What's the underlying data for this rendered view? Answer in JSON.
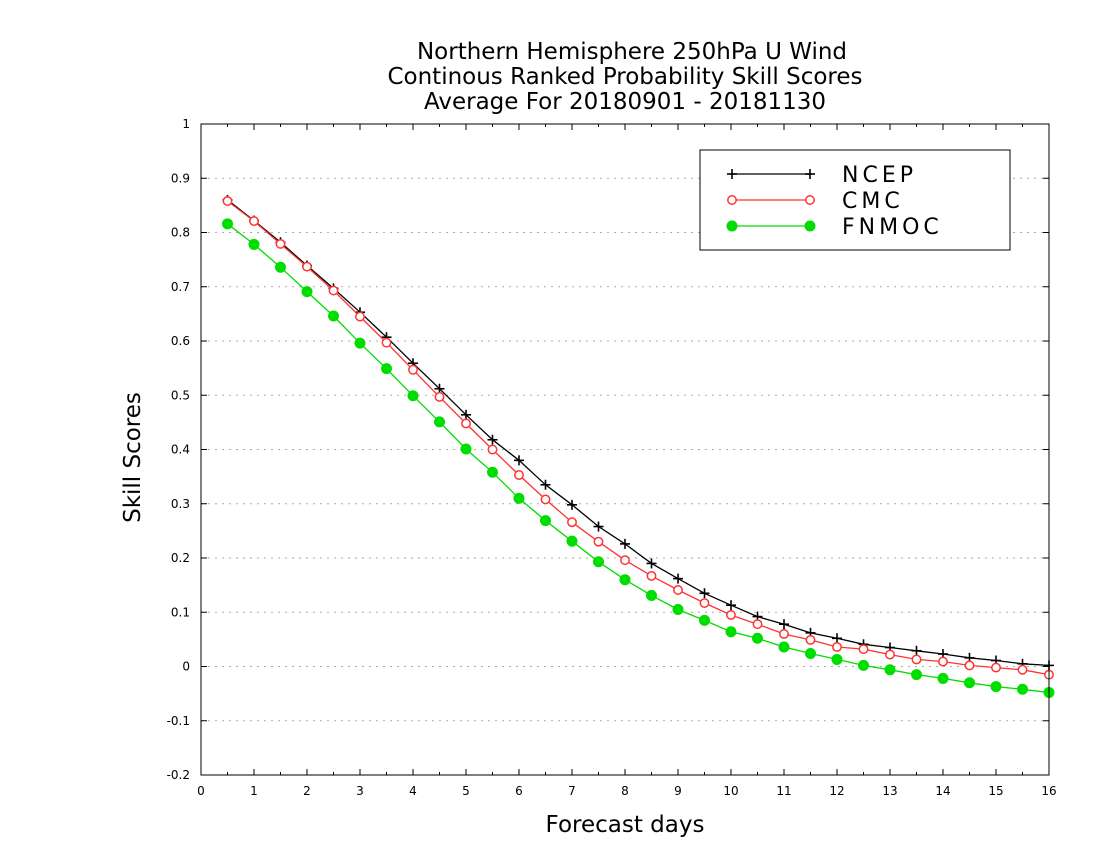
{
  "chart_data": {
    "type": "line",
    "title_lines": [
      "Northern Hemisphere 250hPa U Wind",
      "Continous Ranked Probability Skill Scores",
      "Average For 20180901 - 20181130"
    ],
    "xlabel": "Forecast days",
    "ylabel": "Skill Scores",
    "xlim": [
      0,
      16
    ],
    "ylim": [
      -0.2,
      1
    ],
    "xticks": [
      "0",
      "1",
      "2",
      "3",
      "4",
      "5",
      "6",
      "7",
      "8",
      "9",
      "10",
      "11",
      "12",
      "13",
      "14",
      "15",
      "16"
    ],
    "yticks": [
      "-0.2",
      "-0.1",
      "0",
      "0.1",
      "0.2",
      "0.3",
      "0.4",
      "0.5",
      "0.6",
      "0.7",
      "0.8",
      "0.9",
      "1"
    ],
    "grid": "horizontal-dotted",
    "legend_position": "top-right",
    "x": [
      0.5,
      1,
      1.5,
      2,
      2.5,
      3,
      3.5,
      4,
      4.5,
      5,
      5.5,
      6,
      6.5,
      7,
      7.5,
      8,
      8.5,
      9,
      9.5,
      10,
      10.5,
      11,
      11.5,
      12,
      12.5,
      13,
      13.5,
      14,
      14.5,
      15,
      15.5,
      16
    ],
    "series": [
      {
        "name": "NCEP",
        "color": "#000000",
        "marker": "plus",
        "values": [
          0.86,
          0.822,
          0.782,
          0.739,
          0.697,
          0.653,
          0.607,
          0.559,
          0.512,
          0.464,
          0.418,
          0.38,
          0.335,
          0.298,
          0.258,
          0.226,
          0.19,
          0.162,
          0.135,
          0.113,
          0.092,
          0.078,
          0.062,
          0.052,
          0.041,
          0.035,
          0.029,
          0.023,
          0.016,
          0.011,
          0.005,
          0.002
        ]
      },
      {
        "name": "CMC",
        "color": "#ff3333",
        "marker": "open-circle",
        "values": [
          0.858,
          0.821,
          0.779,
          0.737,
          0.693,
          0.645,
          0.597,
          0.547,
          0.497,
          0.448,
          0.4,
          0.353,
          0.308,
          0.266,
          0.23,
          0.196,
          0.167,
          0.141,
          0.117,
          0.095,
          0.078,
          0.06,
          0.049,
          0.036,
          0.032,
          0.022,
          0.013,
          0.009,
          0.002,
          -0.002,
          -0.006,
          -0.015
        ]
      },
      {
        "name": "FNMOC",
        "color": "#00dd00",
        "marker": "filled-circle",
        "values": [
          0.816,
          0.778,
          0.736,
          0.691,
          0.646,
          0.596,
          0.549,
          0.499,
          0.451,
          0.401,
          0.358,
          0.31,
          0.269,
          0.231,
          0.193,
          0.16,
          0.131,
          0.105,
          0.085,
          0.064,
          0.052,
          0.036,
          0.024,
          0.013,
          0.002,
          -0.006,
          -0.015,
          -0.022,
          -0.03,
          -0.037,
          -0.042,
          -0.048
        ]
      }
    ]
  }
}
